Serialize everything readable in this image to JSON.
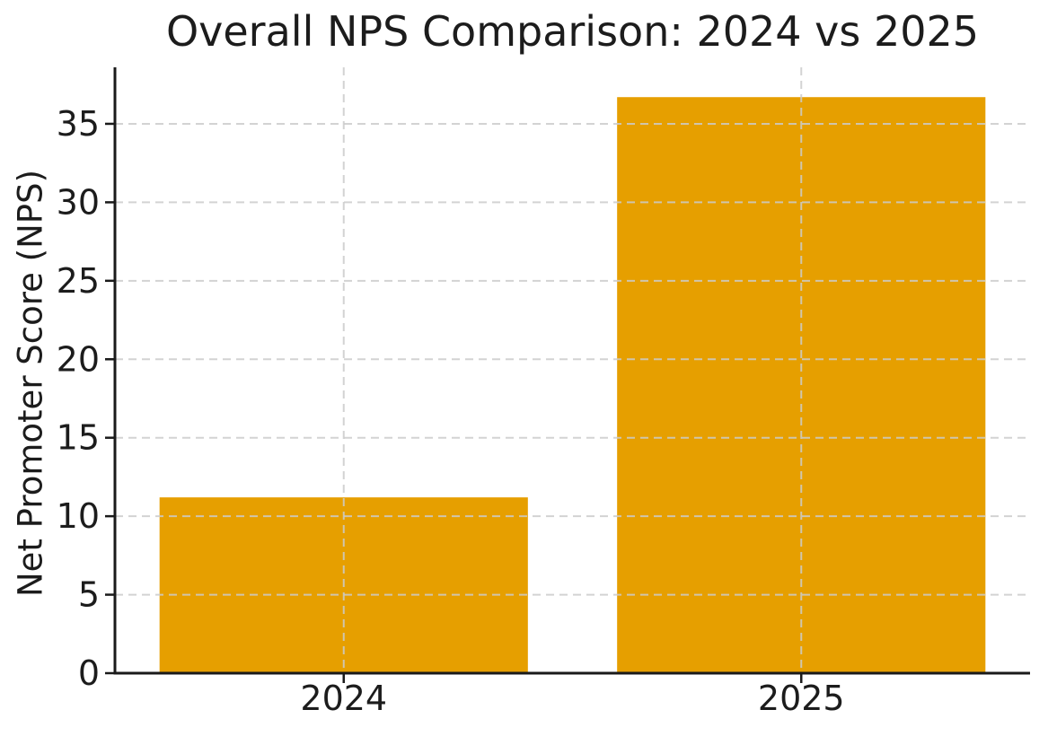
{
  "chart_data": {
    "type": "bar",
    "title": "Overall NPS Comparison: 2024 vs 2025",
    "xlabel": "",
    "ylabel": "Net Promoter Score (NPS)",
    "categories": [
      "2024",
      "2025"
    ],
    "values": [
      11.2,
      36.7
    ],
    "yticks": [
      0,
      5,
      10,
      15,
      20,
      25,
      30,
      35
    ],
    "ylim": [
      0,
      38.6
    ],
    "grid": true,
    "grid_style": "dashed",
    "legend": false,
    "bar_color": "#E69F00",
    "grid_color": "#cccccc",
    "axis_color": "#1a1a1a",
    "text_color": "#1c1c1c",
    "background_color": "#ffffff"
  }
}
